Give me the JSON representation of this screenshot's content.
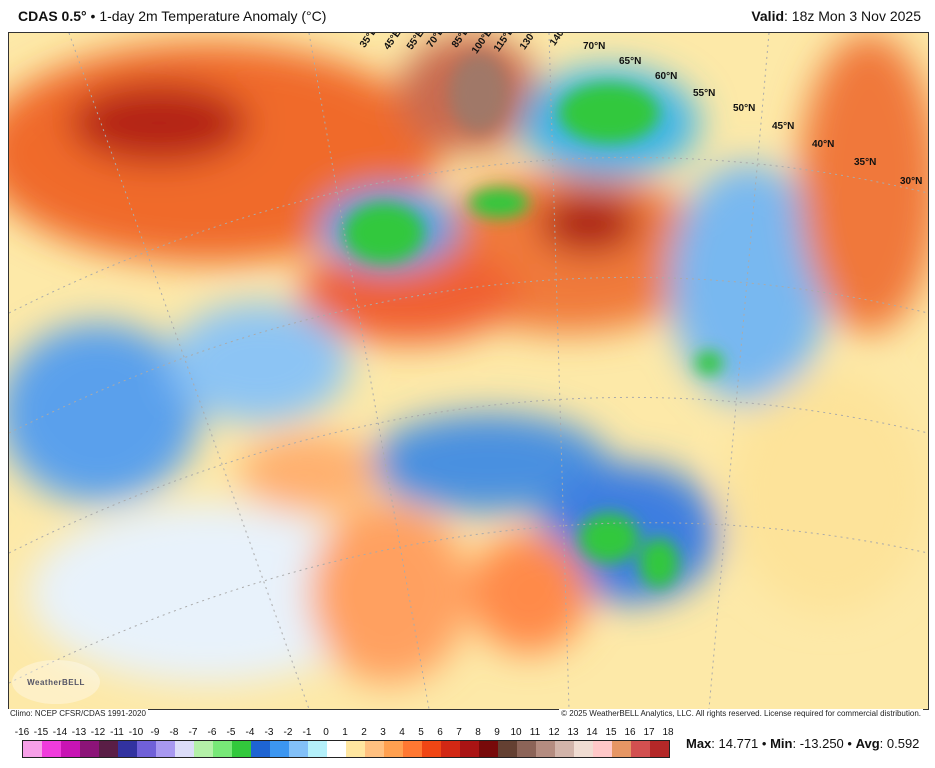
{
  "header": {
    "model": "CDAS 0.5°",
    "sep": "•",
    "product": "1-day 2m Temperature Anomaly (°C)",
    "valid_label": "Valid",
    "valid_value": ": 18z Mon 3 Nov 2025"
  },
  "map": {
    "lon_labels": [
      "35°E",
      "45°E",
      "55°E",
      "70°E",
      "85°E",
      "100°E",
      "115°E",
      "130°E",
      "140°E"
    ],
    "lat_labels": [
      "70°N",
      "65°N",
      "60°N",
      "55°N",
      "50°N",
      "45°N",
      "40°N",
      "35°N",
      "30°N"
    ],
    "logo_text": "WeatherBELL"
  },
  "footer": {
    "climo": "Climo: NCEP CFSR/CDAS 1991-2020",
    "copyright": "© 2025 WeatherBELL Analytics, LLC. All rights reserved. License required for commercial distribution."
  },
  "colorbar": {
    "ticks": [
      "-16",
      "-15",
      "-14",
      "-13",
      "-12",
      "-11",
      "-10",
      "-9",
      "-8",
      "-7",
      "-6",
      "-5",
      "-4",
      "-3",
      "-2",
      "-1",
      "0",
      "1",
      "2",
      "3",
      "4",
      "5",
      "6",
      "7",
      "8",
      "9",
      "10",
      "11",
      "12",
      "13",
      "14",
      "15",
      "16",
      "17",
      "18"
    ],
    "colors": [
      "#f7a0e8",
      "#f03cdc",
      "#c814b4",
      "#8c1478",
      "#5a1e46",
      "#3232a0",
      "#7060d8",
      "#a898f0",
      "#dcdcf8",
      "#b4f0a8",
      "#78e878",
      "#32c83c",
      "#1e64d2",
      "#3c96f0",
      "#82c0f8",
      "#b4f0fa",
      "#ffffff",
      "#ffe6a0",
      "#ffc080",
      "#ffa050",
      "#ff7832",
      "#f04614",
      "#d22814",
      "#aa1414",
      "#780a0a",
      "#644032",
      "#8c6458",
      "#b48c80",
      "#d2b4aa",
      "#f0dcd2",
      "#ffc8c8",
      "#e69664",
      "#d25050",
      "#b42828"
    ]
  },
  "stats": {
    "max_label": "Max",
    "max_value": ": 14.771",
    "min_label": "Min",
    "min_value": ": -13.250",
    "avg_label": "Avg",
    "avg_value": ": 0.592",
    "sep": " • "
  }
}
